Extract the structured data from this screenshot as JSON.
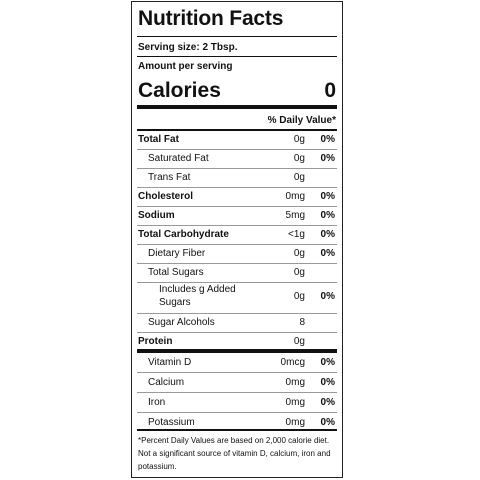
{
  "title": "Nutrition Facts",
  "serving_size": "Serving size: 2 Tbsp.",
  "amount_per_serving": "Amount per serving",
  "calories_label": "Calories",
  "calories_value": "0",
  "daily_value_header": "% Daily Value*",
  "nutrients": [
    {
      "name": "Total Fat",
      "amount": "0g",
      "dv": "0%"
    },
    {
      "name": "Saturated Fat",
      "amount": "0g",
      "dv": "0%"
    },
    {
      "name": "Trans Fat",
      "amount": "0g",
      "dv": ""
    },
    {
      "name": "Cholesterol",
      "amount": "0mg",
      "dv": "0%"
    },
    {
      "name": "Sodium",
      "amount": "5mg",
      "dv": "0%"
    },
    {
      "name": "Total Carbohydrate",
      "amount": "<1g",
      "dv": "0%"
    },
    {
      "name": "Dietary Fiber",
      "amount": "0g",
      "dv": "0%"
    },
    {
      "name": "Total Sugars",
      "amount": "0g",
      "dv": ""
    },
    {
      "name": "Includes g Added",
      "name2": "Sugars",
      "amount": "0g",
      "dv": "0%"
    },
    {
      "name": "Sugar Alcohols",
      "amount": "8",
      "dv": ""
    },
    {
      "name": "Protein",
      "amount": "0g",
      "dv": ""
    }
  ],
  "vitamins": [
    {
      "name": "Vitamin D",
      "amount": "0mcg",
      "dv": "0%"
    },
    {
      "name": "Calcium",
      "amount": "0mg",
      "dv": "0%"
    },
    {
      "name": "Iron",
      "amount": "0mg",
      "dv": "0%"
    },
    {
      "name": "Potassium",
      "amount": "0mg",
      "dv": "0%"
    }
  ],
  "footnote": "*Percent Daily Values are based on 2,000 calorie diet. Not a significant source of vitamin D, calcium, iron and potassium."
}
